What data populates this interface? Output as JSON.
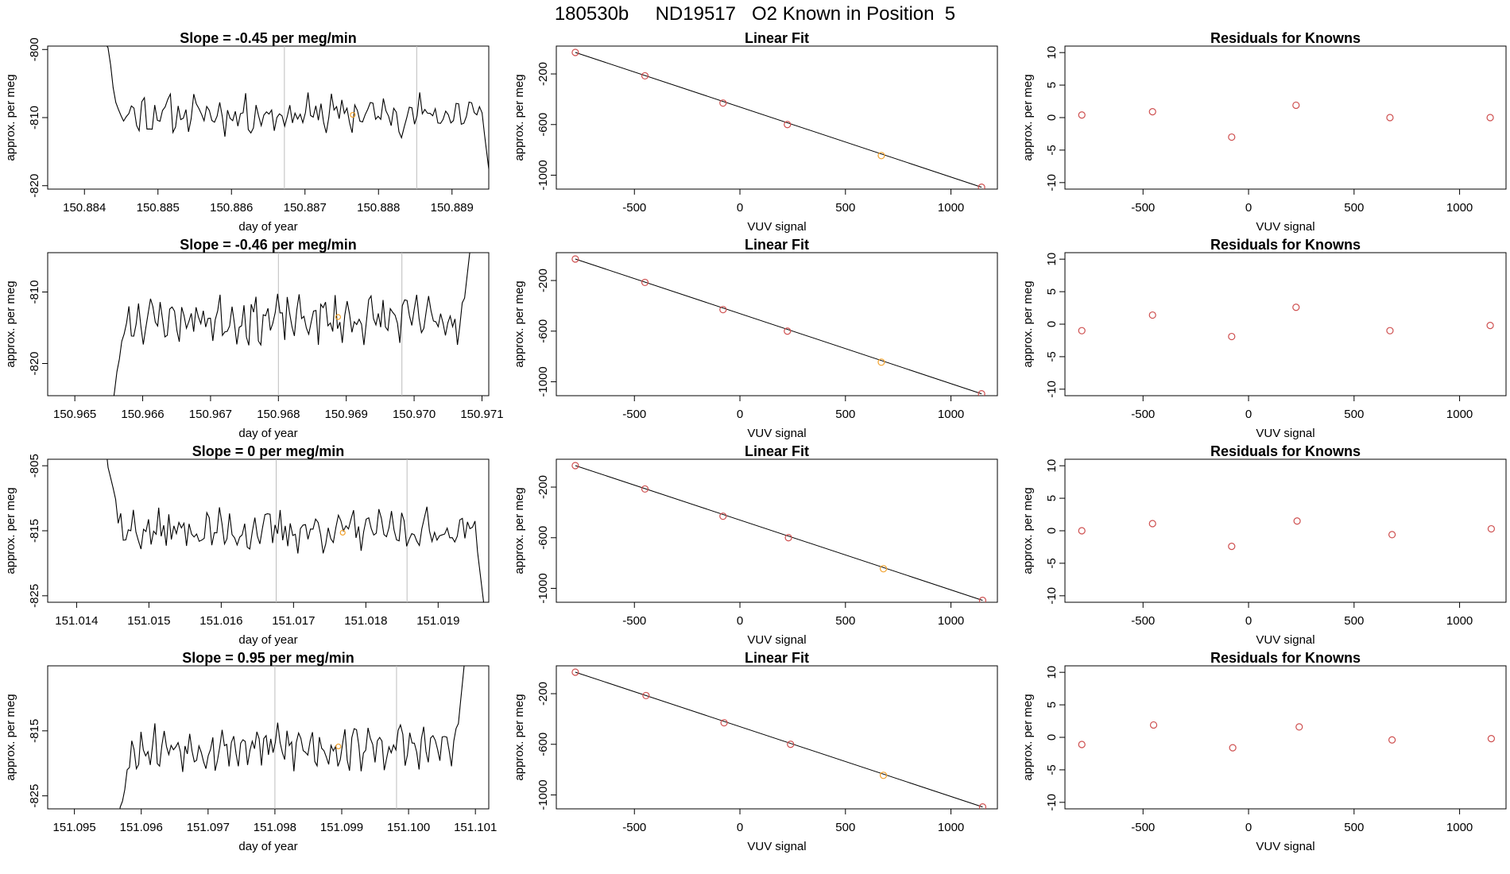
{
  "page_title": "180530b     ND19517   O2 Known in Position  5",
  "colors": {
    "line": "#000000",
    "known": "#ce4f4f",
    "highlight": "#f2a12b",
    "vline": "#bdbdbd"
  },
  "chart_data": [
    {
      "type": "line",
      "row": 1,
      "panel": "time-series",
      "title": "Slope =  -0.45  per meg/min",
      "xlabel": "day of year",
      "ylabel": "approx. per meg",
      "xlim": [
        150.8835,
        150.8895
      ],
      "ylim": [
        -820.5,
        -799.5
      ],
      "xticks": [
        150.884,
        150.885,
        150.886,
        150.887,
        150.888,
        150.889
      ],
      "xtick_labels": [
        "150.884",
        "150.885",
        "150.886",
        "150.887",
        "150.888",
        "150.889"
      ],
      "yticks": [
        -800,
        -810,
        -820
      ],
      "ytick_labels": [
        "-800",
        "-810",
        "-820"
      ],
      "vlines": [
        150.88672,
        150.88852
      ],
      "x_start": 150.88425,
      "x_end": 150.88955,
      "center": -809.5,
      "amplitude": 2.2,
      "seed": 11,
      "start_level": -796,
      "end_level": -822,
      "highlight": [
        150.88765,
        -809.6
      ]
    },
    {
      "type": "scatter",
      "row": 1,
      "panel": "linear-fit",
      "title": "Linear Fit",
      "xlabel": "VUV signal",
      "ylabel": "approx. per meg",
      "xlim": [
        -870,
        1220
      ],
      "ylim": [
        -1110,
        20
      ],
      "xticks": [
        -500,
        0,
        500,
        1000
      ],
      "xtick_labels": [
        "-500",
        "0",
        "500",
        "1000"
      ],
      "yticks": [
        -200,
        -600,
        -1000
      ],
      "ytick_labels": [
        "-200",
        "-600",
        "-1000"
      ],
      "x": [
        -780,
        -450,
        -80,
        225,
        670,
        1145
      ],
      "y": [
        -30,
        -215,
        -430,
        -600,
        -845,
        -1095
      ],
      "highlight_index": 4,
      "fit": [
        [
          -780,
          -30
        ],
        [
          1145,
          -1095
        ]
      ]
    },
    {
      "type": "scatter",
      "row": 1,
      "panel": "residuals",
      "title": "Residuals for Knowns",
      "xlabel": "VUV signal",
      "ylabel": "approx. per meg",
      "xlim": [
        -870,
        1220
      ],
      "ylim": [
        -11,
        11
      ],
      "xticks": [
        -500,
        0,
        500,
        1000
      ],
      "xtick_labels": [
        "-500",
        "0",
        "500",
        "1000"
      ],
      "yticks": [
        10,
        5,
        0,
        -5,
        -10
      ],
      "ytick_labels": [
        "10",
        "5",
        "0",
        "-5",
        "-10"
      ],
      "x": [
        -790,
        -455,
        -80,
        225,
        670,
        1145
      ],
      "y": [
        0.4,
        0.9,
        -3.0,
        1.9,
        0.0,
        0.0
      ]
    },
    {
      "type": "line",
      "row": 2,
      "panel": "time-series",
      "title": "Slope =  -0.46  per meg/min",
      "xlabel": "day of year",
      "ylabel": "approx. per meg",
      "xlim": [
        150.9646,
        150.9711
      ],
      "ylim": [
        -824.5,
        -804.5
      ],
      "xticks": [
        150.965,
        150.966,
        150.967,
        150.968,
        150.969,
        150.97,
        150.971
      ],
      "xtick_labels": [
        "150.965",
        "150.966",
        "150.967",
        "150.968",
        "150.969",
        "150.970",
        "150.971"
      ],
      "yticks": [
        -810,
        -820
      ],
      "ytick_labels": [
        "-810",
        "-820"
      ],
      "vlines": [
        150.968,
        150.96982
      ],
      "x_start": 150.96555,
      "x_end": 150.97085,
      "center": -813.8,
      "amplitude": 2.4,
      "seed": 23,
      "start_level": -826,
      "end_level": -802,
      "highlight": [
        150.96888,
        -813.5
      ]
    },
    {
      "type": "scatter",
      "row": 2,
      "panel": "linear-fit",
      "title": "Linear Fit",
      "xlabel": "VUV signal",
      "ylabel": "approx. per meg",
      "xlim": [
        -870,
        1220
      ],
      "ylim": [
        -1110,
        20
      ],
      "xticks": [
        -500,
        0,
        500,
        1000
      ],
      "xtick_labels": [
        "-500",
        "0",
        "500",
        "1000"
      ],
      "yticks": [
        -200,
        -600,
        -1000
      ],
      "ytick_labels": [
        "-200",
        "-600",
        "-1000"
      ],
      "x": [
        -780,
        -450,
        -80,
        225,
        670,
        1145
      ],
      "y": [
        -30,
        -215,
        -430,
        -600,
        -845,
        -1095
      ],
      "highlight_index": 4,
      "fit": [
        [
          -780,
          -30
        ],
        [
          1145,
          -1095
        ]
      ]
    },
    {
      "type": "scatter",
      "row": 2,
      "panel": "residuals",
      "title": "Residuals for Knowns",
      "xlabel": "VUV signal",
      "ylabel": "approx. per meg",
      "xlim": [
        -870,
        1220
      ],
      "ylim": [
        -11,
        11
      ],
      "xticks": [
        -500,
        0,
        500,
        1000
      ],
      "xtick_labels": [
        "-500",
        "0",
        "500",
        "1000"
      ],
      "yticks": [
        10,
        5,
        0,
        -5,
        -10
      ],
      "ytick_labels": [
        "10",
        "5",
        "0",
        "-5",
        "-10"
      ],
      "x": [
        -790,
        -455,
        -80,
        225,
        670,
        1145
      ],
      "y": [
        -1.0,
        1.4,
        -1.9,
        2.6,
        -1.0,
        -0.2
      ]
    },
    {
      "type": "line",
      "row": 3,
      "panel": "time-series",
      "title": "Slope =  0  per meg/min",
      "xlabel": "day of year",
      "ylabel": "approx. per meg",
      "xlim": [
        151.0136,
        151.0197
      ],
      "ylim": [
        -826,
        -804
      ],
      "xticks": [
        151.014,
        151.015,
        151.016,
        151.017,
        151.018,
        151.019
      ],
      "xtick_labels": [
        "151.014",
        "151.015",
        "151.016",
        "151.017",
        "151.018",
        "151.019"
      ],
      "yticks": [
        -805,
        -815,
        -825
      ],
      "ytick_labels": [
        "-805",
        "-815",
        "-825"
      ],
      "vlines": [
        151.01676,
        151.01857
      ],
      "x_start": 151.0144,
      "x_end": 151.01965,
      "center": -815.0,
      "amplitude": 2.4,
      "seed": 37,
      "start_level": -802,
      "end_level": -828,
      "highlight": [
        151.01768,
        -815.3
      ]
    },
    {
      "type": "scatter",
      "row": 3,
      "panel": "linear-fit",
      "title": "Linear Fit",
      "xlabel": "VUV signal",
      "ylabel": "approx. per meg",
      "xlim": [
        -870,
        1220
      ],
      "ylim": [
        -1110,
        20
      ],
      "xticks": [
        -500,
        0,
        500,
        1000
      ],
      "xtick_labels": [
        "-500",
        "0",
        "500",
        "1000"
      ],
      "yticks": [
        -200,
        -600,
        -1000
      ],
      "ytick_labels": [
        "-200",
        "-600",
        "-1000"
      ],
      "x": [
        -780,
        -450,
        -80,
        230,
        680,
        1150
      ],
      "y": [
        -30,
        -215,
        -430,
        -600,
        -845,
        -1095
      ],
      "highlight_index": 4,
      "fit": [
        [
          -780,
          -30
        ],
        [
          1150,
          -1095
        ]
      ]
    },
    {
      "type": "scatter",
      "row": 3,
      "panel": "residuals",
      "title": "Residuals for Knowns",
      "xlabel": "VUV signal",
      "ylabel": "approx. per meg",
      "xlim": [
        -870,
        1220
      ],
      "ylim": [
        -11,
        11
      ],
      "xticks": [
        -500,
        0,
        500,
        1000
      ],
      "xtick_labels": [
        "-500",
        "0",
        "500",
        "1000"
      ],
      "yticks": [
        10,
        5,
        0,
        -5,
        -10
      ],
      "ytick_labels": [
        "10",
        "5",
        "0",
        "-5",
        "-10"
      ],
      "x": [
        -790,
        -455,
        -80,
        230,
        680,
        1150
      ],
      "y": [
        0.0,
        1.1,
        -2.4,
        1.5,
        -0.6,
        0.3
      ]
    },
    {
      "type": "line",
      "row": 4,
      "panel": "time-series",
      "title": "Slope =  0.95  per meg/min",
      "xlabel": "day of year",
      "ylabel": "approx. per meg",
      "xlim": [
        151.0946,
        151.1012
      ],
      "ylim": [
        -827,
        -805
      ],
      "xticks": [
        151.095,
        151.096,
        151.097,
        151.098,
        151.099,
        151.1,
        151.101
      ],
      "xtick_labels": [
        "151.095",
        "151.096",
        "151.097",
        "151.098",
        "151.099",
        "151.100",
        "151.101"
      ],
      "yticks": [
        -815,
        -825
      ],
      "ytick_labels": [
        "-815",
        "-825"
      ],
      "vlines": [
        151.098,
        151.09982
      ],
      "x_start": 151.09565,
      "x_end": 151.10085,
      "center": -817.5,
      "amplitude": 2.6,
      "seed": 53,
      "start_level": -829,
      "end_level": -803,
      "highlight": [
        151.09895,
        -817.4
      ]
    },
    {
      "type": "scatter",
      "row": 4,
      "panel": "linear-fit",
      "title": "Linear Fit",
      "xlabel": "VUV signal",
      "ylabel": "approx. per meg",
      "xlim": [
        -870,
        1220
      ],
      "ylim": [
        -1110,
        20
      ],
      "xticks": [
        -500,
        0,
        500,
        1000
      ],
      "xtick_labels": [
        "-500",
        "0",
        "500",
        "1000"
      ],
      "yticks": [
        -200,
        -600,
        -1000
      ],
      "ytick_labels": [
        "-200",
        "-600",
        "-1000"
      ],
      "x": [
        -780,
        -445,
        -75,
        240,
        680,
        1150
      ],
      "y": [
        -30,
        -215,
        -430,
        -600,
        -845,
        -1095
      ],
      "highlight_index": 4,
      "fit": [
        [
          -780,
          -30
        ],
        [
          1150,
          -1095
        ]
      ]
    },
    {
      "type": "scatter",
      "row": 4,
      "panel": "residuals",
      "title": "Residuals for Knowns",
      "xlabel": "VUV signal",
      "ylabel": "approx. per meg",
      "xlim": [
        -870,
        1220
      ],
      "ylim": [
        -11,
        11
      ],
      "xticks": [
        -500,
        0,
        500,
        1000
      ],
      "xtick_labels": [
        "-500",
        "0",
        "500",
        "1000"
      ],
      "yticks": [
        10,
        5,
        0,
        -5,
        -10
      ],
      "ytick_labels": [
        "10",
        "5",
        "0",
        "-5",
        "-10"
      ],
      "x": [
        -790,
        -450,
        -75,
        240,
        680,
        1150
      ],
      "y": [
        -1.1,
        1.9,
        -1.6,
        1.6,
        -0.4,
        -0.2
      ]
    }
  ]
}
